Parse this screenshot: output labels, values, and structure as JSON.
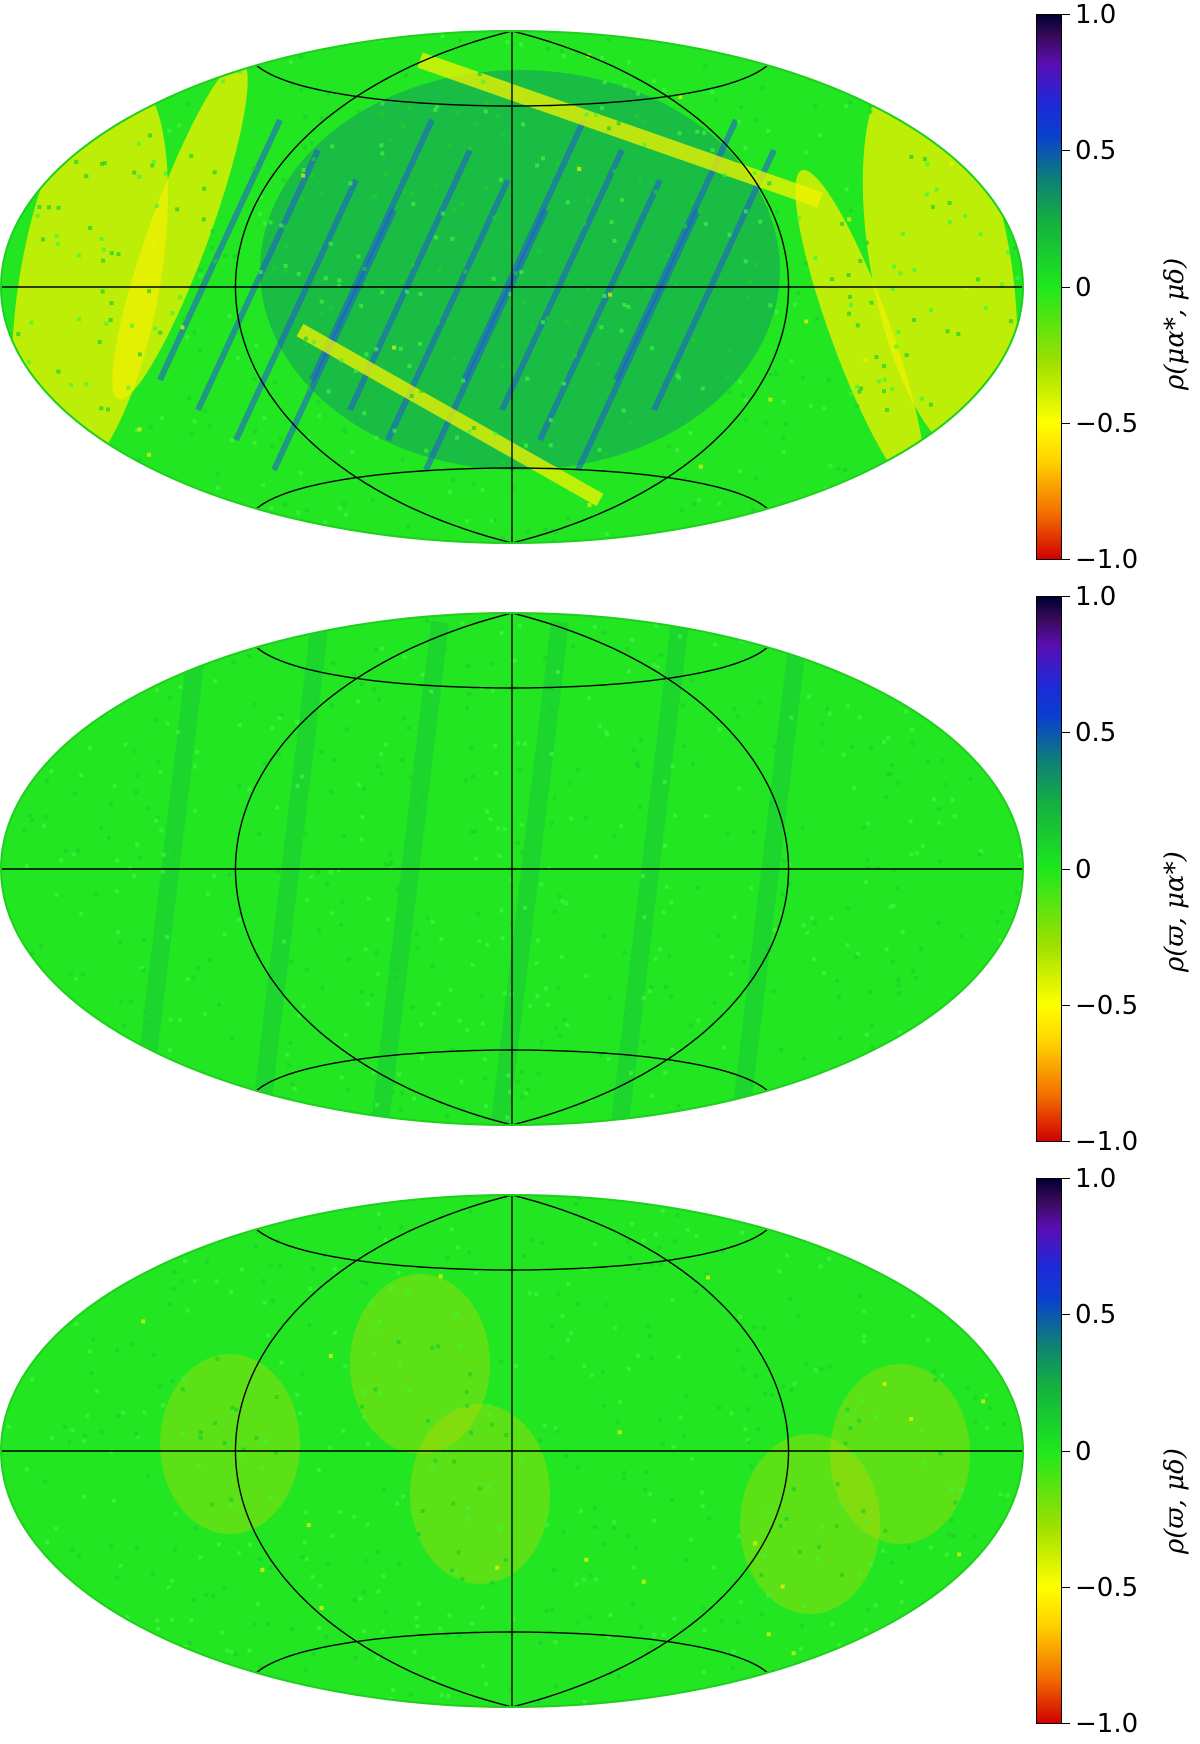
{
  "chart_data": [
    {
      "type": "heatmap",
      "projection": "Hammer-Aitoff all-sky",
      "colorbar_label": "ρ(μα*, μδ)",
      "colorbar_ticks": [
        "1.0",
        "0.5",
        "0",
        "−0.5",
        "−1.0"
      ],
      "value_range": [
        -1.0,
        1.0
      ],
      "dominant_value": 0.05,
      "features": "strong negative (yellow) bands near outer edges, positive (blue) diagonal stripes in central region"
    },
    {
      "type": "heatmap",
      "projection": "Hammer-Aitoff all-sky",
      "colorbar_label": "ρ(ϖ, μα*)",
      "colorbar_ticks": [
        "1.0",
        "0.5",
        "0",
        "−0.5",
        "−1.0"
      ],
      "value_range": [
        -1.0,
        1.0
      ],
      "dominant_value": 0.0,
      "features": "nearly uniform near zero with faint positive stripes"
    },
    {
      "type": "heatmap",
      "projection": "Hammer-Aitoff all-sky",
      "colorbar_label": "ρ(ϖ, μδ)",
      "colorbar_ticks": [
        "1.0",
        "0.5",
        "0",
        "−0.5",
        "−1.0"
      ],
      "value_range": [
        -1.0,
        1.0
      ],
      "dominant_value": -0.05,
      "features": "mostly near zero with scattered negative (yellow) patches at mid-longitudes"
    }
  ],
  "colors": {
    "red": "#d20000",
    "yellow": "#ffff00",
    "green": "#1de81d",
    "blue": "#0a3fd0",
    "violet": "#5a0eb4",
    "dark": "#000033"
  }
}
